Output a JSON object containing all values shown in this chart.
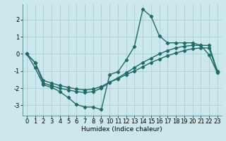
{
  "xlabel": "Humidex (Indice chaleur)",
  "background_color": "#cce8ec",
  "grid_color": "#aacfd4",
  "line_color": "#1f6b68",
  "xlim": [
    -0.5,
    23.5
  ],
  "ylim": [
    -3.6,
    2.9
  ],
  "yticks": [
    -3,
    -2,
    -1,
    0,
    1,
    2
  ],
  "xticks": [
    0,
    1,
    2,
    3,
    4,
    5,
    6,
    7,
    8,
    9,
    10,
    11,
    12,
    13,
    14,
    15,
    16,
    17,
    18,
    19,
    20,
    21,
    22,
    23
  ],
  "line1_x": [
    0,
    1,
    2,
    3,
    4,
    5,
    6,
    7,
    8,
    9,
    10,
    11,
    12,
    13,
    14,
    15,
    16,
    17,
    18,
    19,
    20,
    21,
    22,
    23
  ],
  "line1_y": [
    0.0,
    -0.8,
    -1.8,
    -1.95,
    -2.2,
    -2.55,
    -2.95,
    -3.1,
    -3.1,
    -3.25,
    -1.2,
    -1.05,
    -0.35,
    0.45,
    2.6,
    2.2,
    1.05,
    0.65,
    0.65,
    0.65,
    0.65,
    0.5,
    -0.05,
    -1.1
  ],
  "line2_x": [
    0,
    1,
    2,
    3,
    4,
    5,
    6,
    7,
    8,
    9,
    10,
    11,
    12,
    13,
    14,
    15,
    16,
    17,
    18,
    19,
    20,
    21,
    22,
    23
  ],
  "line2_y": [
    0.0,
    -0.5,
    -1.55,
    -1.7,
    -1.85,
    -1.95,
    -2.05,
    -2.1,
    -2.05,
    -1.9,
    -1.65,
    -1.45,
    -1.2,
    -1.0,
    -0.75,
    -0.5,
    -0.3,
    -0.1,
    0.05,
    0.2,
    0.3,
    0.35,
    0.35,
    -1.05
  ],
  "line3_x": [
    0,
    1,
    2,
    3,
    4,
    5,
    6,
    7,
    8,
    9,
    10,
    11,
    12,
    13,
    14,
    15,
    16,
    17,
    18,
    19,
    20,
    21,
    22,
    23
  ],
  "line3_y": [
    0.0,
    -0.5,
    -1.7,
    -1.85,
    -2.0,
    -2.1,
    -2.2,
    -2.25,
    -2.2,
    -2.0,
    -1.65,
    -1.4,
    -1.1,
    -0.8,
    -0.5,
    -0.25,
    0.0,
    0.2,
    0.35,
    0.45,
    0.5,
    0.5,
    0.5,
    -1.0
  ],
  "marker": "D",
  "marker_size": 2.2,
  "line_width": 1.0,
  "font_size_label": 6.5,
  "font_size_tick": 6.0
}
